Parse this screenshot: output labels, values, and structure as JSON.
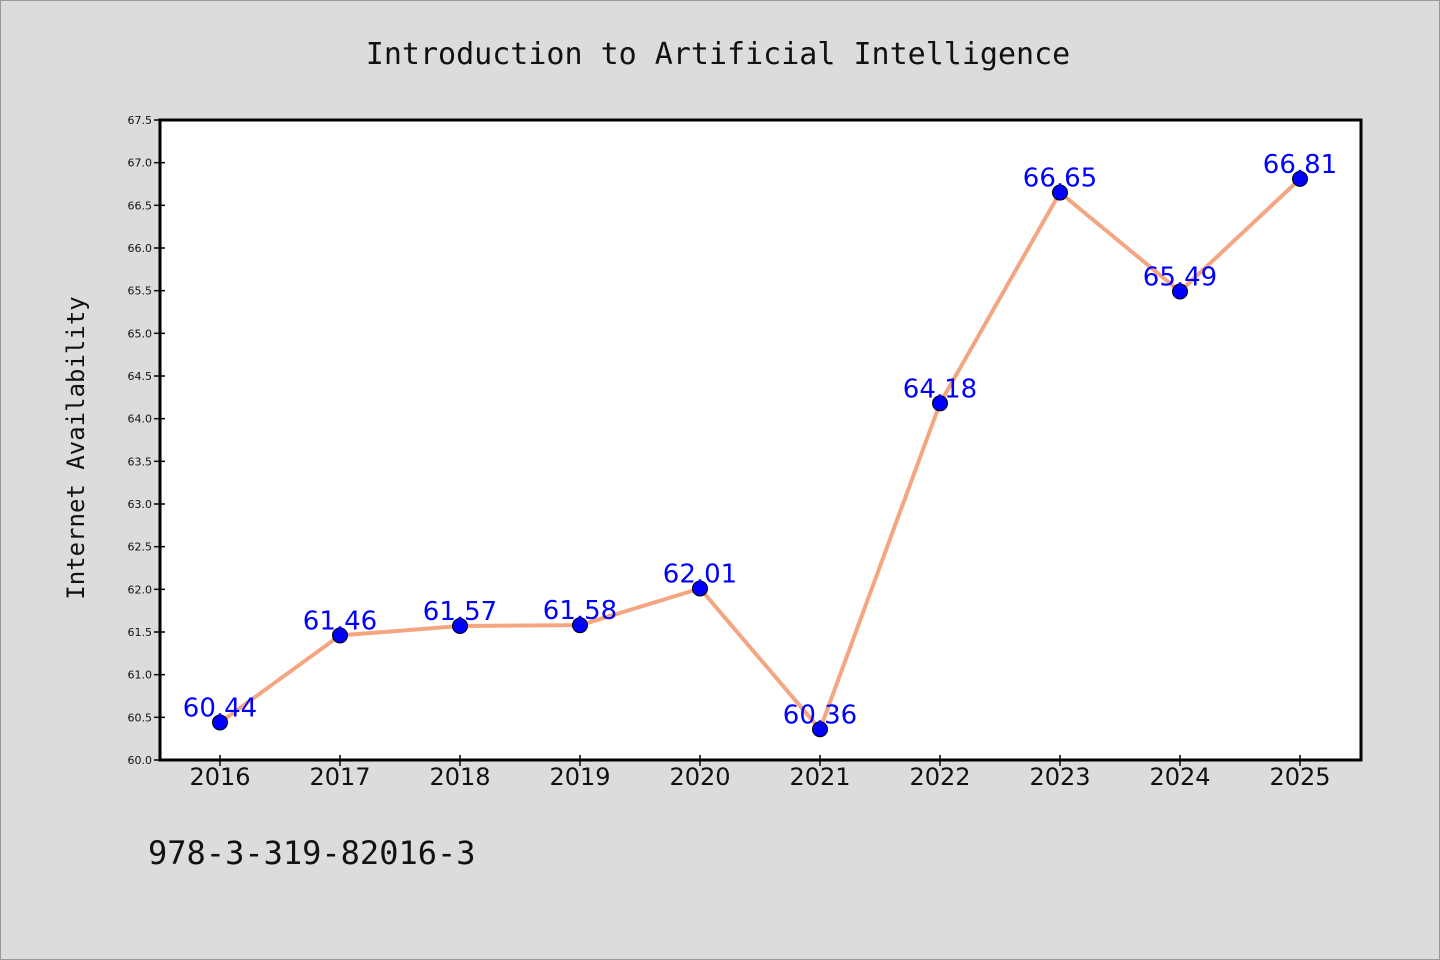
{
  "chart_data": {
    "type": "line",
    "title": "Introduction to Artificial Intelligence",
    "xlabel": "",
    "ylabel": "Internet Availability",
    "categories": [
      "2016",
      "2017",
      "2018",
      "2019",
      "2020",
      "2021",
      "2022",
      "2023",
      "2024",
      "2025"
    ],
    "values": [
      60.44,
      61.46,
      61.57,
      61.58,
      62.01,
      60.36,
      64.18,
      66.65,
      65.49,
      66.81
    ],
    "data_labels": [
      "60.44",
      "61.46",
      "61.57",
      "61.58",
      "62.01",
      "60.36",
      "64.18",
      "66.65",
      "65.49",
      "66.81"
    ],
    "ylim": [
      60.0,
      67.5
    ],
    "yticks": [
      "60.0",
      "60.5",
      "61.0",
      "61.5",
      "62.0",
      "62.5",
      "63.0",
      "63.5",
      "64.0",
      "64.5",
      "65.0",
      "65.5",
      "66.0",
      "66.5",
      "67.0",
      "67.5"
    ],
    "grid": false,
    "line_color": "#f4a582",
    "marker_color": "#0000ff",
    "label_color": "#0000ff"
  },
  "footer": {
    "isbn": "978-3-319-82016-3"
  }
}
